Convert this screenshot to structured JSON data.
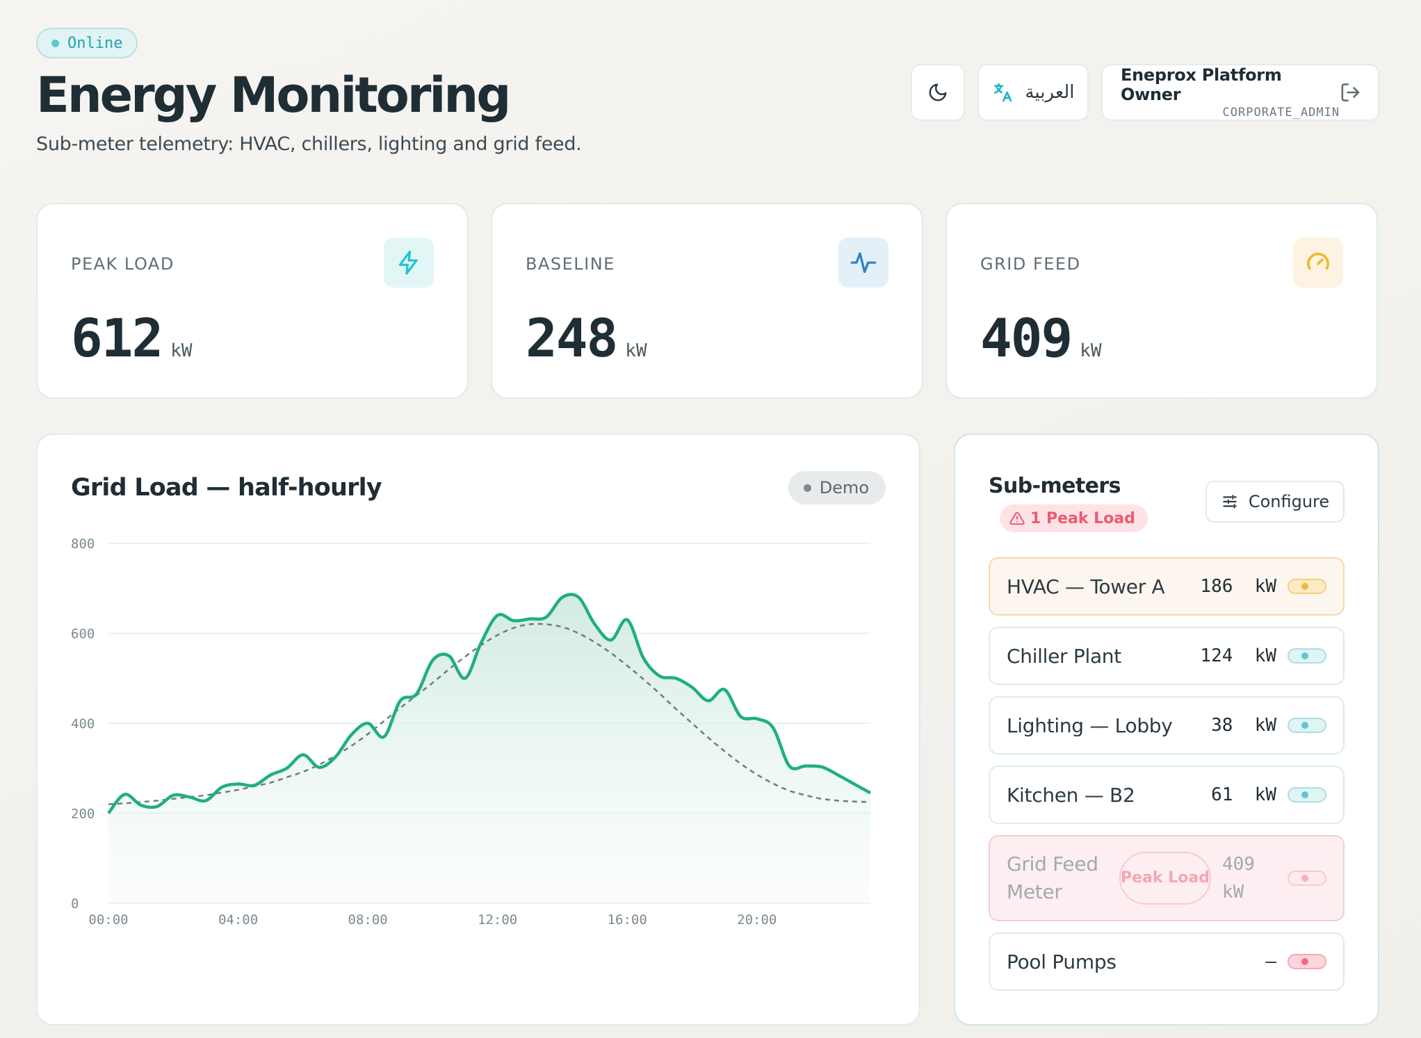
{
  "header": {
    "status": "Online",
    "title": "Energy Monitoring",
    "subtitle": "Sub-meter telemetry: HVAC, chillers, lighting and grid feed.",
    "language_label": "العربية",
    "user_name": "Eneprox Platform Owner",
    "user_role": "CORPORATE_ADMIN"
  },
  "kpis": [
    {
      "label": "PEAK LOAD",
      "value": "612",
      "unit": "kW",
      "icon": "lightning-icon",
      "accent": "#1fc4cf"
    },
    {
      "label": "BASELINE",
      "value": "248",
      "unit": "kW",
      "icon": "activity-icon",
      "accent": "#2f83c4"
    },
    {
      "label": "GRID FEED",
      "value": "409",
      "unit": "kW",
      "icon": "gauge-icon",
      "accent": "#f0b82e"
    }
  ],
  "chart": {
    "title": "Grid Load — half-hourly",
    "badge": "Demo"
  },
  "chart_data": {
    "type": "area",
    "ylim": [
      0,
      800
    ],
    "yticks": [
      "0",
      "200",
      "400",
      "600",
      "800"
    ],
    "xticks": [
      "00:00",
      "04:00",
      "08:00",
      "12:00",
      "16:00",
      "20:00"
    ],
    "x_hours": [
      0,
      0.5,
      1,
      1.5,
      2,
      2.5,
      3,
      3.5,
      4,
      4.5,
      5,
      5.5,
      6,
      6.5,
      7,
      7.5,
      8,
      8.5,
      9,
      9.5,
      10,
      10.5,
      11,
      11.5,
      12,
      12.5,
      13,
      13.5,
      14,
      14.5,
      15,
      15.5,
      16,
      16.5,
      17,
      17.5,
      18,
      18.5,
      19,
      19.5,
      20,
      20.5,
      21,
      21.5,
      22,
      22.5,
      23,
      23.5
    ],
    "series": [
      {
        "values": [
          200,
          242,
          218,
          215,
          240,
          236,
          228,
          258,
          265,
          262,
          285,
          300,
          330,
          302,
          325,
          375,
          400,
          370,
          450,
          465,
          540,
          550,
          500,
          580,
          640,
          628,
          632,
          636,
          680,
          680,
          620,
          585,
          630,
          545,
          505,
          500,
          480,
          450,
          475,
          415,
          410,
          390,
          305,
          305,
          303,
          285,
          265,
          245
        ],
        "color": "#1fb07c",
        "fill": "#d7eee4"
      },
      {
        "values": [
          220,
          222,
          225,
          228,
          232,
          236,
          240,
          246,
          252,
          260,
          268,
          280,
          292,
          308,
          328,
          350,
          376,
          405,
          434,
          462,
          490,
          520,
          548,
          574,
          596,
          612,
          620,
          620,
          614,
          600,
          580,
          556,
          528,
          498,
          466,
          432,
          400,
          368,
          338,
          310,
          286,
          266,
          250,
          240,
          232,
          228,
          226,
          225
        ],
        "color": "#6e7b80",
        "style": "dashed"
      }
    ]
  },
  "meters": {
    "title": "Sub-meters",
    "alert_chip": "1 Peak Load",
    "configure_label": "Configure",
    "rows": [
      {
        "name": "HVAC — Tower A",
        "value": "186  kW",
        "state": "peak"
      },
      {
        "name": "Chiller Plant",
        "value": "124  kW",
        "state": "normal"
      },
      {
        "name": "Lighting — Lobby",
        "value": "38  kW",
        "state": "normal"
      },
      {
        "name": "Kitchen — B2",
        "value": "61  kW",
        "state": "normal"
      },
      {
        "name": "Grid Feed Meter",
        "value": "409 kW",
        "badge": "Peak Load",
        "state": "alert"
      },
      {
        "name": "Pool Pumps",
        "value": "—",
        "state": "off"
      }
    ]
  }
}
